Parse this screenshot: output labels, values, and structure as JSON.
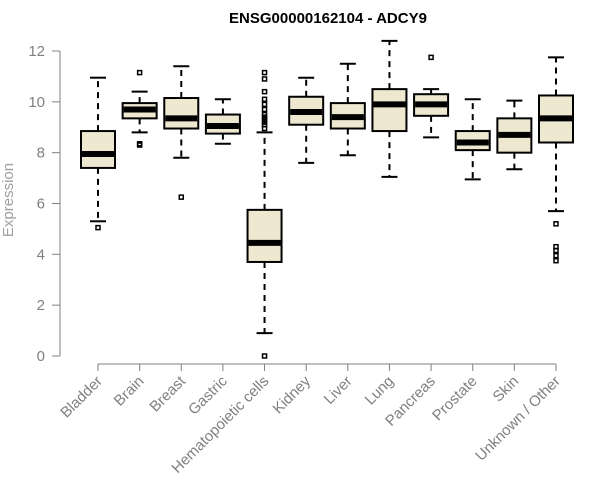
{
  "chart_data": {
    "type": "boxplot",
    "title": "ENSG00000162104 - ADCY9",
    "xlabel": "",
    "ylabel": "Expression",
    "ylim": [
      0,
      12
    ],
    "yticks": [
      0,
      2,
      4,
      6,
      8,
      10,
      12
    ],
    "categories": [
      "Bladder",
      "Brain",
      "Breast",
      "Gastric",
      "Hematopoietic cells",
      "Kidney",
      "Liver",
      "Lung",
      "Pancreas",
      "Prostate",
      "Skin",
      "Unknown / Other"
    ],
    "boxes": [
      {
        "category": "Bladder",
        "whisker_low": 5.3,
        "q1": 7.4,
        "median": 7.95,
        "q3": 8.85,
        "whisker_high": 10.95,
        "outliers": [
          5.05
        ]
      },
      {
        "category": "Brain",
        "whisker_low": 8.8,
        "q1": 9.35,
        "median": 9.7,
        "q3": 9.95,
        "whisker_high": 10.4,
        "outliers": [
          11.15,
          8.35,
          8.3
        ]
      },
      {
        "category": "Breast",
        "whisker_low": 7.8,
        "q1": 8.95,
        "median": 9.35,
        "q3": 10.15,
        "whisker_high": 11.4,
        "outliers": [
          6.25
        ]
      },
      {
        "category": "Gastric",
        "whisker_low": 8.35,
        "q1": 8.75,
        "median": 9.05,
        "q3": 9.5,
        "whisker_high": 10.1,
        "outliers": []
      },
      {
        "category": "Hematopoietic cells",
        "whisker_low": 0.9,
        "q1": 3.7,
        "median": 4.45,
        "q3": 5.75,
        "whisker_high": 8.8,
        "outliers": [
          11.15,
          10.9,
          10.4,
          10.1,
          9.9,
          9.7,
          9.5,
          9.4,
          9.3,
          9.2,
          9.1,
          8.95,
          0.0
        ]
      },
      {
        "category": "Kidney",
        "whisker_low": 7.6,
        "q1": 9.1,
        "median": 9.6,
        "q3": 10.2,
        "whisker_high": 10.95,
        "outliers": []
      },
      {
        "category": "Liver",
        "whisker_low": 7.9,
        "q1": 8.95,
        "median": 9.4,
        "q3": 9.95,
        "whisker_high": 11.5,
        "outliers": []
      },
      {
        "category": "Lung",
        "whisker_low": 7.05,
        "q1": 8.85,
        "median": 9.9,
        "q3": 10.5,
        "whisker_high": 12.4,
        "outliers": []
      },
      {
        "category": "Pancreas",
        "whisker_low": 8.6,
        "q1": 9.45,
        "median": 9.9,
        "q3": 10.3,
        "whisker_high": 10.5,
        "outliers": [
          11.75
        ]
      },
      {
        "category": "Prostate",
        "whisker_low": 6.95,
        "q1": 8.1,
        "median": 8.4,
        "q3": 8.85,
        "whisker_high": 10.1,
        "outliers": []
      },
      {
        "category": "Skin",
        "whisker_low": 7.35,
        "q1": 8.0,
        "median": 8.7,
        "q3": 9.35,
        "whisker_high": 10.05,
        "outliers": []
      },
      {
        "category": "Unknown / Other",
        "whisker_low": 5.7,
        "q1": 8.4,
        "median": 9.35,
        "q3": 10.25,
        "whisker_high": 11.75,
        "outliers": [
          5.2,
          4.3,
          4.15,
          3.95,
          3.75
        ]
      }
    ]
  }
}
